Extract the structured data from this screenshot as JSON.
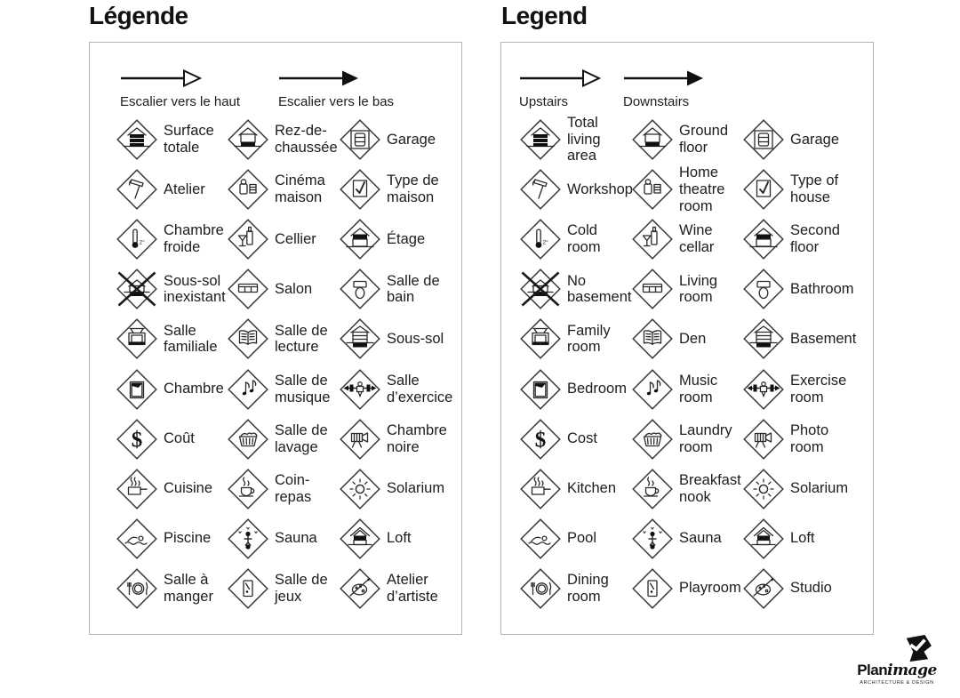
{
  "colors": {
    "ink": "#1d1d1d",
    "icon_stroke": "#2a2a2a",
    "icon_fill": "#111111",
    "panel_border": "#b4b4b4",
    "background": "#ffffff"
  },
  "panels": [
    {
      "title": "Légende",
      "arrows": [
        {
          "label": "Escalier vers le haut",
          "style": "open"
        },
        {
          "label": "Escalier vers le bas",
          "style": "filled"
        }
      ],
      "items": [
        {
          "icon": "total-living-area",
          "label": "Surface\ntotale"
        },
        {
          "icon": "ground-floor",
          "label": "Rez-de-\nchaussée"
        },
        {
          "icon": "garage",
          "label": "Garage"
        },
        {
          "icon": "workshop",
          "label": "Atelier"
        },
        {
          "icon": "home-theatre",
          "label": "Cinéma\nmaison"
        },
        {
          "icon": "type-of-house",
          "label": "Type de\nmaison"
        },
        {
          "icon": "cold-room",
          "label": "Chambre\nfroide"
        },
        {
          "icon": "wine-cellar",
          "label": "Cellier"
        },
        {
          "icon": "second-floor",
          "label": "Étage"
        },
        {
          "icon": "no-basement",
          "label": "Sous-sol\ninexistant"
        },
        {
          "icon": "living-room",
          "label": "Salon"
        },
        {
          "icon": "bathroom",
          "label": "Salle de\nbain"
        },
        {
          "icon": "family-room",
          "label": "Salle\nfamiliale"
        },
        {
          "icon": "den",
          "label": "Salle de\nlecture"
        },
        {
          "icon": "basement",
          "label": "Sous-sol"
        },
        {
          "icon": "bedroom",
          "label": "Chambre"
        },
        {
          "icon": "music-room",
          "label": "Salle de\nmusique"
        },
        {
          "icon": "exercise-room",
          "label": "Salle\nd’exercice"
        },
        {
          "icon": "cost",
          "label": "Coût"
        },
        {
          "icon": "laundry-room",
          "label": "Salle de\nlavage"
        },
        {
          "icon": "photo-room",
          "label": "Chambre\nnoire"
        },
        {
          "icon": "kitchen",
          "label": "Cuisine"
        },
        {
          "icon": "breakfast-nook",
          "label": "Coin-\nrepas"
        },
        {
          "icon": "solarium",
          "label": "Solarium"
        },
        {
          "icon": "pool",
          "label": "Piscine"
        },
        {
          "icon": "sauna",
          "label": "Sauna"
        },
        {
          "icon": "loft",
          "label": "Loft"
        },
        {
          "icon": "dining-room",
          "label": "Salle à\nmanger"
        },
        {
          "icon": "playroom",
          "label": "Salle de\njeux"
        },
        {
          "icon": "studio",
          "label": "Atelier\nd’artiste"
        }
      ]
    },
    {
      "title": "Legend",
      "arrows": [
        {
          "label": "Upstairs",
          "style": "open"
        },
        {
          "label": "Downstairs",
          "style": "filled"
        }
      ],
      "items": [
        {
          "icon": "total-living-area",
          "label": "Total\nliving\narea"
        },
        {
          "icon": "ground-floor",
          "label": "Ground\nfloor"
        },
        {
          "icon": "garage",
          "label": "Garage"
        },
        {
          "icon": "workshop",
          "label": "Workshop"
        },
        {
          "icon": "home-theatre",
          "label": "Home\ntheatre\nroom"
        },
        {
          "icon": "type-of-house",
          "label": "Type of\nhouse"
        },
        {
          "icon": "cold-room",
          "label": "Cold\nroom"
        },
        {
          "icon": "wine-cellar",
          "label": "Wine\ncellar"
        },
        {
          "icon": "second-floor",
          "label": "Second\nfloor"
        },
        {
          "icon": "no-basement",
          "label": "No\nbasement"
        },
        {
          "icon": "living-room",
          "label": "Living\nroom"
        },
        {
          "icon": "bathroom",
          "label": "Bathroom"
        },
        {
          "icon": "family-room",
          "label": "Family\nroom"
        },
        {
          "icon": "den",
          "label": "Den"
        },
        {
          "icon": "basement",
          "label": "Basement"
        },
        {
          "icon": "bedroom",
          "label": "Bedroom"
        },
        {
          "icon": "music-room",
          "label": "Music\nroom"
        },
        {
          "icon": "exercise-room",
          "label": "Exercise\nroom"
        },
        {
          "icon": "cost",
          "label": "Cost"
        },
        {
          "icon": "laundry-room",
          "label": "Laundry\nroom"
        },
        {
          "icon": "photo-room",
          "label": "Photo\nroom"
        },
        {
          "icon": "kitchen",
          "label": "Kitchen"
        },
        {
          "icon": "breakfast-nook",
          "label": "Breakfast\nnook"
        },
        {
          "icon": "solarium",
          "label": "Solarium"
        },
        {
          "icon": "pool",
          "label": "Pool"
        },
        {
          "icon": "sauna",
          "label": "Sauna"
        },
        {
          "icon": "loft",
          "label": "Loft"
        },
        {
          "icon": "dining-room",
          "label": "Dining\nroom"
        },
        {
          "icon": "playroom",
          "label": "Playroom"
        },
        {
          "icon": "studio",
          "label": "Studio"
        }
      ]
    }
  ],
  "logo": {
    "word_bold": "Plan",
    "word_italic": "image",
    "tagline": "ARCHITECTURE & DESIGN"
  }
}
